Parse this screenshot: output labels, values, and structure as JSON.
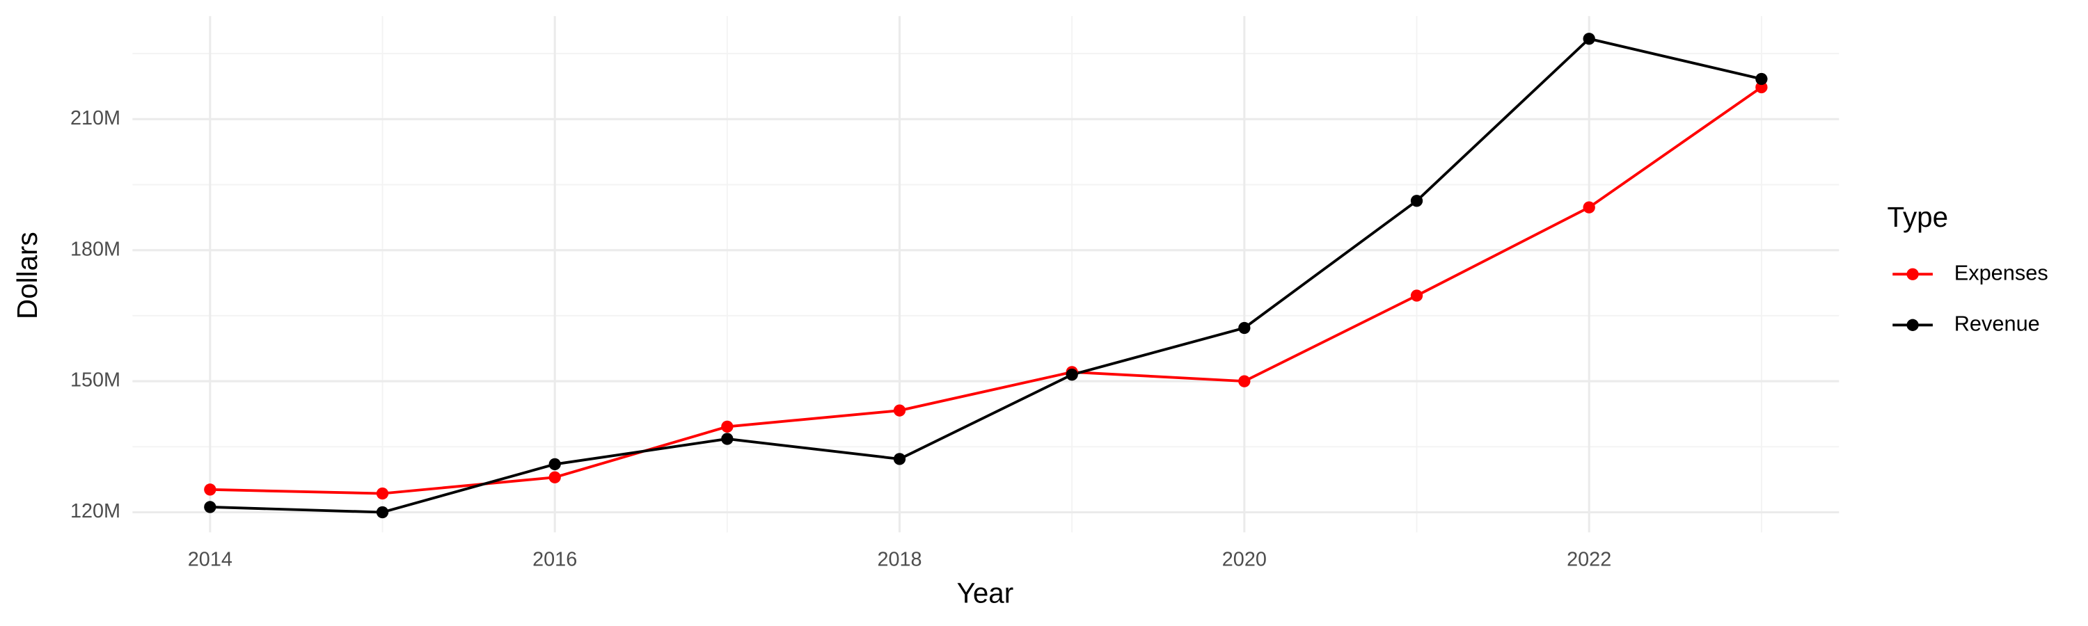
{
  "chart_data": {
    "type": "line",
    "x_label": "Year",
    "y_label": "Dollars",
    "x": [
      2014,
      2015,
      2016,
      2017,
      2018,
      2019,
      2020,
      2021,
      2022,
      2023
    ],
    "series": [
      {
        "name": "Expenses",
        "color": "#ff0000",
        "values": [
          125200000,
          124300000,
          128000000,
          139600000,
          143300000,
          152100000,
          150000000,
          169600000,
          189800000,
          217300000
        ]
      },
      {
        "name": "Revenue",
        "color": "#000000",
        "values": [
          121200000,
          120000000,
          131000000,
          136800000,
          132200000,
          151500000,
          162200000,
          191300000,
          228400000,
          219200000
        ]
      }
    ],
    "xlim": [
      2013.55,
      2023.45
    ],
    "xticks": [
      2014,
      2016,
      2018,
      2020,
      2022
    ],
    "ylim": [
      115400000,
      233600000
    ],
    "yticks": [
      {
        "value": 120000000,
        "label": "120M"
      },
      {
        "value": 150000000,
        "label": "150M"
      },
      {
        "value": 180000000,
        "label": "180M"
      },
      {
        "value": 210000000,
        "label": "210M"
      }
    ],
    "legend_title": "Type",
    "legend_position": "right",
    "grid": true
  }
}
